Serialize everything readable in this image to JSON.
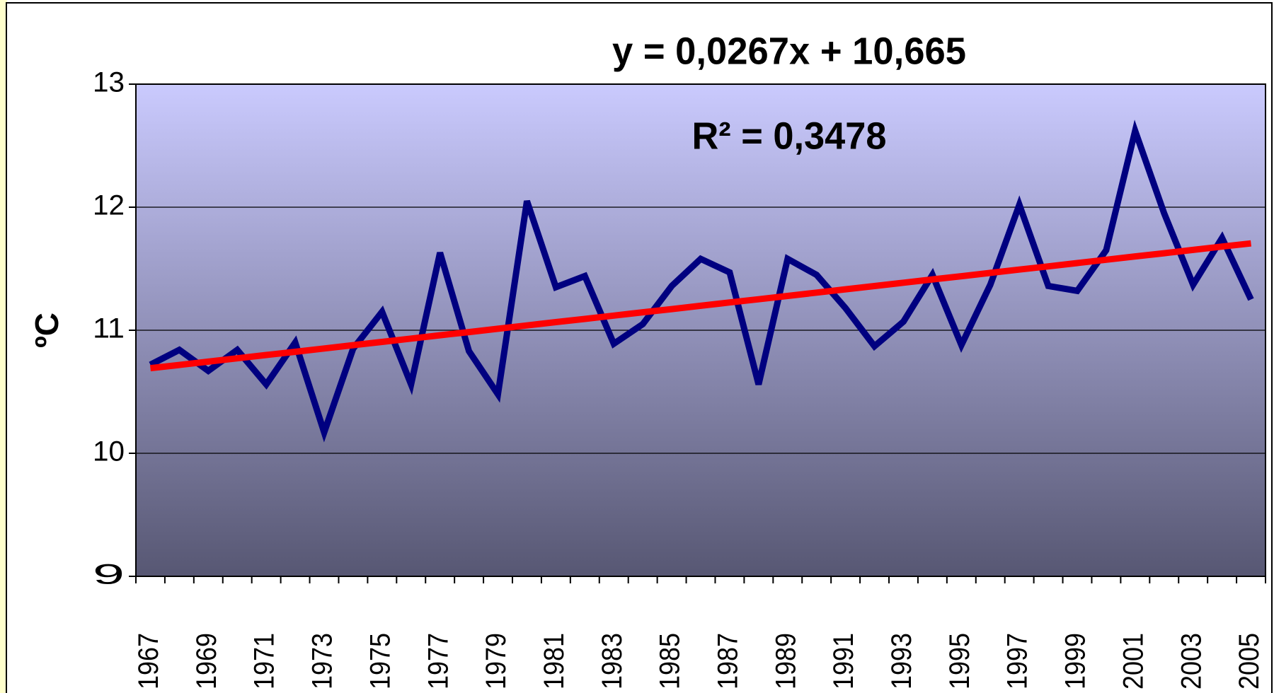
{
  "chart_data": {
    "type": "line",
    "annotations": [
      "y = 0,0267x + 10,665",
      "R² = 0,3478"
    ],
    "y_label": "ºC",
    "categories": [
      "1967",
      null,
      "1969",
      null,
      "1971",
      null,
      "1973",
      null,
      "1975",
      null,
      "1977",
      null,
      "1979",
      null,
      "1981",
      null,
      "1983",
      null,
      "1985",
      null,
      "1987",
      null,
      "1989",
      null,
      "1991",
      null,
      "1993",
      null,
      "1995",
      null,
      "1997",
      null,
      "1999",
      null,
      "2001",
      null,
      "2003",
      null,
      "2005"
    ],
    "series": [
      {
        "color": "#000080",
        "values": [
          10.72,
          10.84,
          10.67,
          10.84,
          10.56,
          10.9,
          10.17,
          10.85,
          11.15,
          10.56,
          11.63,
          10.83,
          10.48,
          12.05,
          11.35,
          11.44,
          10.89,
          11.05,
          11.36,
          11.58,
          11.47,
          10.56,
          11.58,
          11.45,
          11.18,
          10.87,
          11.07,
          11.45,
          10.88,
          11.37,
          12.02,
          11.36,
          11.32,
          11.65,
          12.62,
          11.95,
          11.37,
          11.75,
          11.25
        ]
      },
      {
        "color": "#ff0000",
        "values": [
          10.692,
          10.718,
          10.745,
          10.772,
          10.799,
          10.825,
          10.852,
          10.879,
          10.905,
          10.932,
          10.959,
          10.985,
          11.012,
          11.039,
          11.066,
          11.092,
          11.119,
          11.146,
          11.172,
          11.199,
          11.226,
          11.252,
          11.279,
          11.306,
          11.333,
          11.359,
          11.386,
          11.413,
          11.439,
          11.466,
          11.493,
          11.519,
          11.546,
          11.573,
          11.6,
          11.626,
          11.653,
          11.68,
          11.706
        ]
      }
    ],
    "ylim": [
      9,
      13
    ],
    "yticks": [
      9,
      10,
      11,
      12,
      13
    ],
    "grid": true
  }
}
